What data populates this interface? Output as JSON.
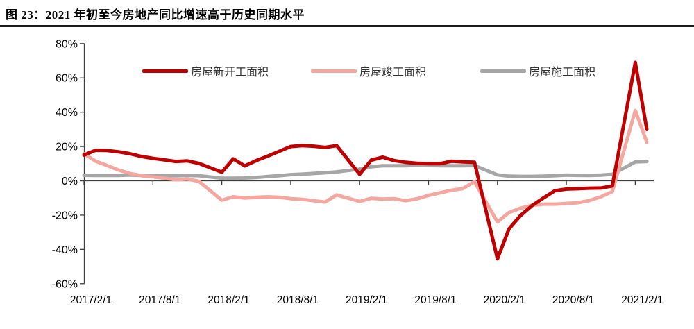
{
  "page": {
    "title": "图 23：2021 年初至今房地产同比增速高于历史同期水平"
  },
  "chart_data": {
    "type": "line",
    "title": "",
    "xlabel": "",
    "ylabel": "",
    "ylim": [
      -60,
      80
    ],
    "y_tick_step": 20,
    "grid": false,
    "legend_position": "top",
    "axis_color": "#3f3f3f",
    "y_tick_labels": [
      "80%",
      "60%",
      "40%",
      "20%",
      "0%",
      "-20%",
      "-40%",
      "-60%"
    ],
    "x_tick_labels": [
      "2017/2/1",
      "2017/8/1",
      "2018/2/1",
      "2018/8/1",
      "2019/2/1",
      "2019/8/1",
      "2020/2/1",
      "2020/8/1",
      "2021/2/1"
    ],
    "x": [
      "2017/2",
      "2017/3",
      "2017/4",
      "2017/5",
      "2017/6",
      "2017/7",
      "2017/8",
      "2017/9",
      "2017/10",
      "2017/11",
      "2017/12",
      "2018/2",
      "2018/3",
      "2018/4",
      "2018/5",
      "2018/6",
      "2018/7",
      "2018/8",
      "2018/9",
      "2018/10",
      "2018/11",
      "2018/12",
      "2019/2",
      "2019/3",
      "2019/4",
      "2019/5",
      "2019/6",
      "2019/7",
      "2019/8",
      "2019/9",
      "2019/10",
      "2019/11",
      "2019/12",
      "2020/2",
      "2020/3",
      "2020/4",
      "2020/5",
      "2020/6",
      "2020/7",
      "2020/8",
      "2020/9",
      "2020/10",
      "2020/11",
      "2020/12",
      "2021/2",
      "2021/3"
    ],
    "series": [
      {
        "name": "房屋新开工面积",
        "color": "#c00000",
        "values": [
          15,
          17.8,
          17.7,
          16.9,
          15.8,
          14.2,
          13.1,
          12.2,
          11.3,
          11.6,
          10.2,
          5,
          12.8,
          8.7,
          11.8,
          14.4,
          17.2,
          20,
          20.5,
          20.2,
          19.5,
          20.5,
          3.8,
          12,
          13.8,
          11.8,
          10.8,
          10.2,
          10,
          10,
          11.4,
          11,
          10.8,
          -45.5,
          -28,
          -20.3,
          -14.5,
          -10,
          -5.8,
          -4.8,
          -4.6,
          -4.3,
          -4.2,
          -3,
          69,
          30
        ]
      },
      {
        "name": "房屋竣工面积",
        "color": "#f4a69f",
        "values": [
          15.8,
          11.5,
          9,
          6.3,
          4.3,
          3,
          2.3,
          1.5,
          0.6,
          1,
          -0.3,
          -11.3,
          -9.3,
          -10,
          -9.6,
          -9.3,
          -9.6,
          -10.4,
          -10.8,
          -11.6,
          -12.4,
          -8.2,
          -12,
          -10.2,
          -10.6,
          -10.4,
          -11.6,
          -10.5,
          -8.5,
          -7,
          -5.5,
          -4.5,
          -0.5,
          -24,
          -18.5,
          -16,
          -14.3,
          -13.6,
          -13.6,
          -13.2,
          -12.8,
          -11.5,
          -9.3,
          -6.3,
          41,
          22.5
        ]
      },
      {
        "name": "房屋施工面积",
        "color": "#a6a6a6",
        "values": [
          3.2,
          3.1,
          3.1,
          3.1,
          3.4,
          3.2,
          3.1,
          3.0,
          2.9,
          3.1,
          3.0,
          1.5,
          1.5,
          1.6,
          2.0,
          2.5,
          3.0,
          3.6,
          3.9,
          4.3,
          4.7,
          5.2,
          6.8,
          8.2,
          8.8,
          8.8,
          8.8,
          9.0,
          8.9,
          8.8,
          8.8,
          8.8,
          8.9,
          3.5,
          2.7,
          2.6,
          2.6,
          2.7,
          3.0,
          3.3,
          3.2,
          3.1,
          3.3,
          3.8,
          11.0,
          11.3
        ]
      }
    ]
  }
}
